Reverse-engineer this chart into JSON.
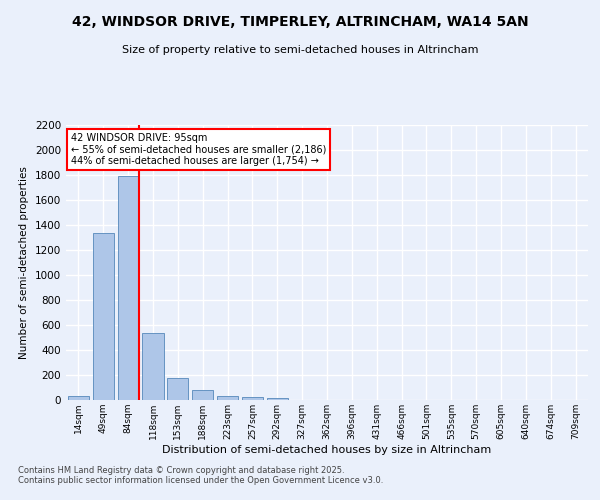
{
  "title_line1": "42, WINDSOR DRIVE, TIMPERLEY, ALTRINCHAM, WA14 5AN",
  "title_line2": "Size of property relative to semi-detached houses in Altrincham",
  "xlabel": "Distribution of semi-detached houses by size in Altrincham",
  "ylabel": "Number of semi-detached properties",
  "categories": [
    "14sqm",
    "49sqm",
    "84sqm",
    "118sqm",
    "153sqm",
    "188sqm",
    "223sqm",
    "257sqm",
    "292sqm",
    "327sqm",
    "362sqm",
    "396sqm",
    "431sqm",
    "466sqm",
    "501sqm",
    "535sqm",
    "570sqm",
    "605sqm",
    "640sqm",
    "674sqm",
    "709sqm"
  ],
  "values": [
    30,
    1340,
    1790,
    535,
    175,
    80,
    35,
    25,
    20,
    0,
    0,
    0,
    0,
    0,
    0,
    0,
    0,
    0,
    0,
    0,
    0
  ],
  "bar_color": "#aec6e8",
  "bar_edge_color": "#5588bb",
  "vline_color": "red",
  "annotation_title": "42 WINDSOR DRIVE: 95sqm",
  "annotation_line1": "← 55% of semi-detached houses are smaller (2,186)",
  "annotation_line2": "44% of semi-detached houses are larger (1,754) →",
  "annotation_box_color": "white",
  "annotation_box_edge": "red",
  "ylim": [
    0,
    2200
  ],
  "yticks": [
    0,
    200,
    400,
    600,
    800,
    1000,
    1200,
    1400,
    1600,
    1800,
    2000,
    2200
  ],
  "background_color": "#eaf0fb",
  "grid_color": "white",
  "footer_line1": "Contains HM Land Registry data © Crown copyright and database right 2025.",
  "footer_line2": "Contains public sector information licensed under the Open Government Licence v3.0."
}
